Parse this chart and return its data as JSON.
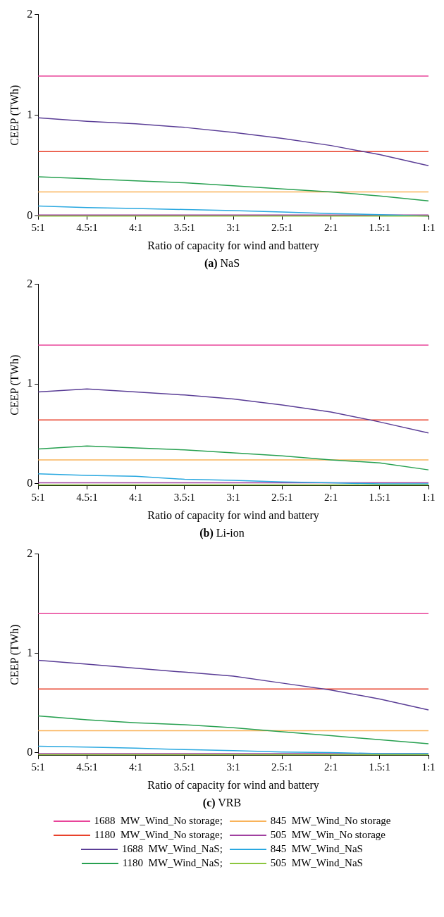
{
  "chart_data": [
    {
      "type": "line",
      "xlabel": "Ratio of capacity for wind and battery",
      "ylabel": "CEEP (TWh)",
      "annotations": [
        "(a) NaS"
      ],
      "categories": [
        "5:1",
        "4.5:1",
        "4:1",
        "3.5:1",
        "3:1",
        "2.5:1",
        "2:1",
        "1.5:1",
        "1:1"
      ],
      "ylim": [
        0,
        2
      ],
      "yticks": [
        0,
        1,
        2
      ],
      "grid": false,
      "legend": false,
      "series": [
        {
          "color": "#e8449a",
          "values": [
            1.39,
            1.39,
            1.39,
            1.39,
            1.39,
            1.39,
            1.39,
            1.39,
            1.39
          ]
        },
        {
          "color": "#f9b35a",
          "values": [
            0.24,
            0.24,
            0.24,
            0.24,
            0.24,
            0.24,
            0.24,
            0.24,
            0.24
          ]
        },
        {
          "color": "#e8412b",
          "values": [
            0.64,
            0.64,
            0.64,
            0.64,
            0.64,
            0.64,
            0.64,
            0.64,
            0.64
          ]
        },
        {
          "color": "#a040a0",
          "values": [
            0.01,
            0.01,
            0.01,
            0.01,
            0.01,
            0.01,
            0.01,
            0.01,
            0.01
          ]
        },
        {
          "color": "#5a3d96",
          "values": [
            0.975,
            0.94,
            0.915,
            0.88,
            0.83,
            0.77,
            0.7,
            0.61,
            0.5
          ]
        },
        {
          "color": "#29a8e0",
          "values": [
            0.1,
            0.085,
            0.075,
            0.065,
            0.055,
            0.04,
            0.025,
            0.015,
            0
          ]
        },
        {
          "color": "#27a050",
          "values": [
            0.39,
            0.37,
            0.35,
            0.33,
            0.3,
            0.27,
            0.24,
            0.2,
            0.15
          ]
        },
        {
          "color": "#8cc63e",
          "values": [
            0,
            0,
            0,
            0,
            0,
            0,
            0,
            0,
            0
          ]
        }
      ]
    },
    {
      "type": "line",
      "xlabel": "Ratio of capacity for wind and battery",
      "ylabel": "CEEP (TWh)",
      "annotations": [
        "(b) Li-ion"
      ],
      "categories": [
        "5:1",
        "4.5:1",
        "4:1",
        "3.5:1",
        "3:1",
        "2.5:1",
        "2:1",
        "1.5:1",
        "1:1"
      ],
      "ylim": [
        -0.02,
        2
      ],
      "yticks": [
        0,
        1,
        2
      ],
      "grid": false,
      "legend": false,
      "series": [
        {
          "color": "#e8449a",
          "values": [
            1.39,
            1.39,
            1.39,
            1.39,
            1.39,
            1.39,
            1.39,
            1.39,
            1.39
          ]
        },
        {
          "color": "#f9b35a",
          "values": [
            0.24,
            0.24,
            0.24,
            0.24,
            0.24,
            0.24,
            0.24,
            0.24,
            0.24
          ]
        },
        {
          "color": "#e8412b",
          "values": [
            0.64,
            0.64,
            0.64,
            0.64,
            0.64,
            0.64,
            0.64,
            0.64,
            0.64
          ]
        },
        {
          "color": "#a040a0",
          "values": [
            0.01,
            0.01,
            0.01,
            0.01,
            0.01,
            0.01,
            0.01,
            0.01,
            0.01
          ]
        },
        {
          "color": "#5a3d96",
          "values": [
            0.92,
            0.95,
            0.92,
            0.89,
            0.85,
            0.79,
            0.72,
            0.62,
            0.51
          ]
        },
        {
          "color": "#29a8e0",
          "values": [
            0.1,
            0.085,
            0.075,
            0.045,
            0.035,
            0.02,
            0.01,
            0,
            0
          ]
        },
        {
          "color": "#27a050",
          "values": [
            0.35,
            0.38,
            0.36,
            0.34,
            0.31,
            0.28,
            0.24,
            0.21,
            0.14
          ]
        },
        {
          "color": "#8cc63e",
          "values": [
            -0.01,
            -0.01,
            -0.01,
            -0.01,
            -0.01,
            -0.01,
            -0.01,
            -0.01,
            -0.01
          ]
        }
      ]
    },
    {
      "type": "line",
      "xlabel": "Ratio of capacity for wind and battery",
      "ylabel": "CEEP (TWh)",
      "annotations": [
        "(c) VRB"
      ],
      "categories": [
        "5:1",
        "4.5:1",
        "4:1",
        "3.5:1",
        "3:1",
        "2.5:1",
        "2:1",
        "1.5:1",
        "1:1"
      ],
      "ylim": [
        -0.03,
        2
      ],
      "yticks": [
        0,
        1,
        2
      ],
      "grid": false,
      "legend": "bottom",
      "series": [
        {
          "name": "1688  MW_Wind_No storage;",
          "color": "#e8449a",
          "values": [
            1.4,
            1.4,
            1.4,
            1.4,
            1.4,
            1.4,
            1.4,
            1.4,
            1.4
          ]
        },
        {
          "name": "845  MW_Wind_No storage",
          "color": "#f9b35a",
          "values": [
            0.22,
            0.22,
            0.22,
            0.22,
            0.22,
            0.22,
            0.22,
            0.22,
            0.22
          ]
        },
        {
          "name": "1180  MW_Wind_No storage;",
          "color": "#e8412b",
          "values": [
            0.64,
            0.64,
            0.64,
            0.64,
            0.64,
            0.64,
            0.64,
            0.64,
            0.64
          ]
        },
        {
          "name": "505  MW_Win_No storage",
          "color": "#a040a0",
          "values": [
            -0.01,
            -0.01,
            -0.01,
            -0.01,
            -0.01,
            -0.01,
            -0.01,
            -0.01,
            -0.01
          ]
        },
        {
          "name": "1688  MW_Wind_NaS;",
          "color": "#5a3d96",
          "values": [
            0.93,
            0.89,
            0.85,
            0.81,
            0.77,
            0.7,
            0.63,
            0.54,
            0.43
          ]
        },
        {
          "name": "845  MW_Wind_NaS",
          "color": "#29a8e0",
          "values": [
            0.065,
            0.055,
            0.045,
            0.03,
            0.02,
            0.005,
            0,
            -0.01,
            -0.01
          ]
        },
        {
          "name": "1180  MW_Wind_NaS;",
          "color": "#27a050",
          "values": [
            0.37,
            0.33,
            0.3,
            0.28,
            0.25,
            0.21,
            0.17,
            0.13,
            0.09
          ]
        },
        {
          "name": "505  MW_Wind_NaS",
          "color": "#8cc63e",
          "values": [
            -0.02,
            -0.02,
            -0.02,
            -0.02,
            -0.02,
            -0.02,
            -0.02,
            -0.02,
            -0.02
          ]
        }
      ]
    }
  ]
}
